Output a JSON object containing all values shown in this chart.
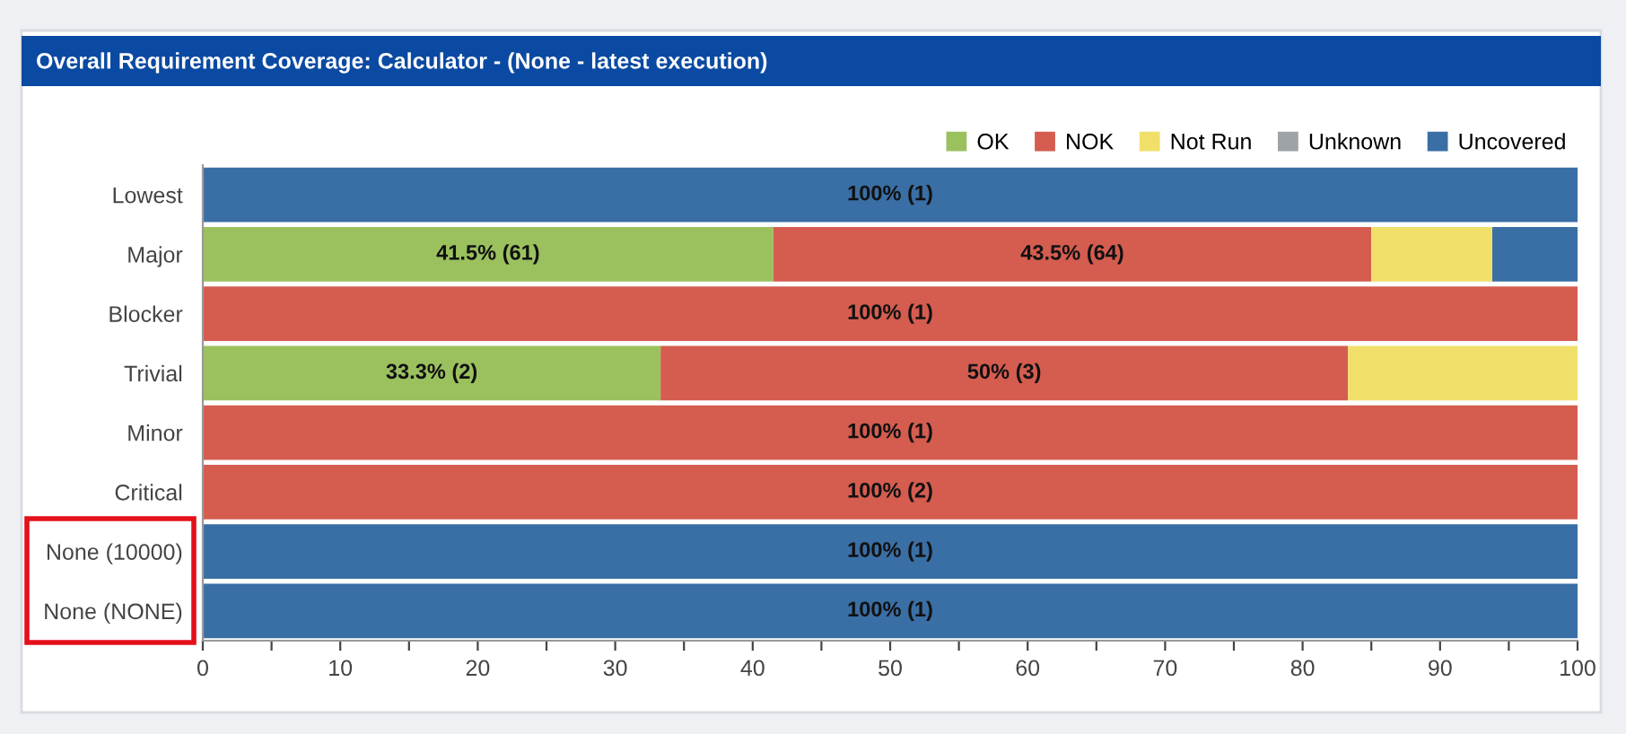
{
  "chart_data": {
    "type": "bar",
    "orientation": "horizontal",
    "stacked": true,
    "title": "Overall Requirement Coverage: Calculator - (None - latest execution)",
    "categories": [
      "Lowest",
      "Major",
      "Blocker",
      "Trivial",
      "Minor",
      "Critical",
      "None (10000)",
      "None (NONE)"
    ],
    "series": [
      {
        "name": "OK",
        "color": "#9bc15f",
        "values": [
          0,
          41.5,
          0,
          33.3,
          0,
          0,
          0,
          0
        ],
        "value_labels": [
          null,
          "41.5% (61)",
          null,
          "33.3% (2)",
          null,
          null,
          null,
          null
        ]
      },
      {
        "name": "NOK",
        "color": "#d45d50",
        "values": [
          0,
          43.5,
          100,
          50,
          100,
          100,
          0,
          0
        ],
        "value_labels": [
          null,
          "43.5% (64)",
          "100% (1)",
          "50% (3)",
          "100% (1)",
          "100% (2)",
          null,
          null
        ]
      },
      {
        "name": "Not Run",
        "color": "#f0e06a",
        "values": [
          0,
          8.8,
          0,
          16.7,
          0,
          0,
          0,
          0
        ]
      },
      {
        "name": "Unknown",
        "color": "#9ea3a8",
        "values": [
          0,
          0,
          0,
          0,
          0,
          0,
          0,
          0
        ]
      },
      {
        "name": "Uncovered",
        "color": "#3a6fa5",
        "values": [
          100,
          6.2,
          0,
          0,
          0,
          0,
          100,
          100
        ],
        "value_labels": [
          "100% (1)",
          null,
          null,
          null,
          null,
          null,
          "100% (1)",
          "100% (1)"
        ]
      }
    ],
    "xlim": [
      0,
      100
    ],
    "xticks": [
      0,
      {
        "value": 5,
        "label": null
      },
      10,
      {
        "value": 15,
        "label": null
      },
      20,
      {
        "value": 25,
        "label": null
      },
      30,
      {
        "value": 35,
        "label": null
      },
      40,
      {
        "value": 45,
        "label": null
      },
      50,
      {
        "value": 55,
        "label": null
      },
      60,
      {
        "value": 65,
        "label": null
      },
      70,
      {
        "value": 75,
        "label": null
      },
      80,
      {
        "value": 85,
        "label": null
      },
      90,
      {
        "value": 95,
        "label": null
      },
      100
    ],
    "legend": "top right",
    "grid": false
  }
}
